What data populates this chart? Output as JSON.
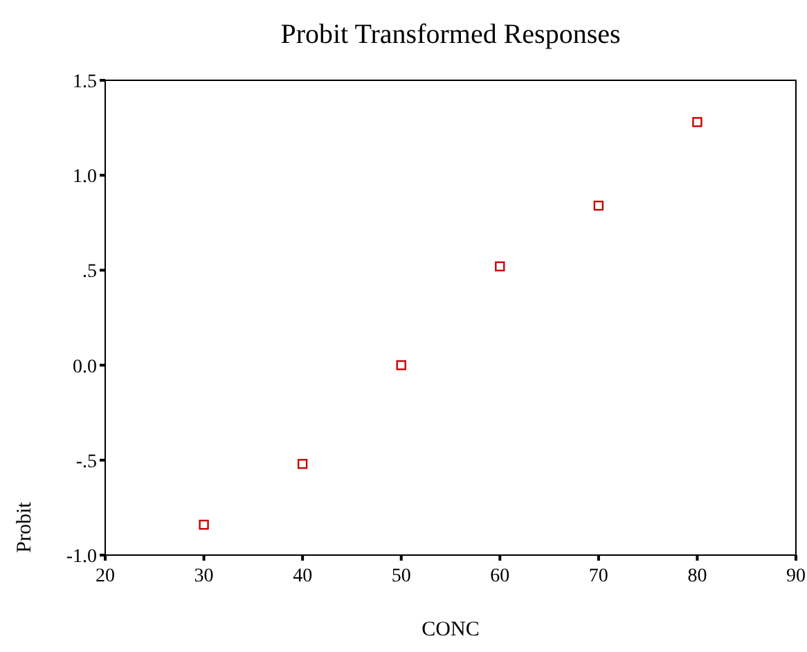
{
  "chart_data": {
    "type": "scatter",
    "title": "Probit Transformed Responses",
    "xlabel": "CONC",
    "ylabel": "Probit",
    "x": [
      30,
      40,
      50,
      60,
      70,
      80
    ],
    "series": [
      {
        "color": "#cc0000",
        "values": [
          -0.84,
          -0.52,
          0,
          0.52,
          0.84,
          1.28
        ]
      }
    ],
    "xlim": [
      20,
      90
    ],
    "xticks": [
      20,
      30,
      40,
      50,
      60,
      70,
      80,
      90
    ],
    "ylim": [
      -1,
      1.5
    ],
    "yticks": [
      {
        "value": -1,
        "label": "-1.0"
      },
      {
        "value": -0.5,
        "label": "-.5"
      },
      {
        "value": 0,
        "label": "0.0"
      },
      {
        "value": 0.5,
        "label": ".5"
      },
      {
        "value": 1,
        "label": "1.0"
      },
      {
        "value": 1.5,
        "label": "1.5"
      }
    ],
    "marker": "square",
    "grid": false
  }
}
